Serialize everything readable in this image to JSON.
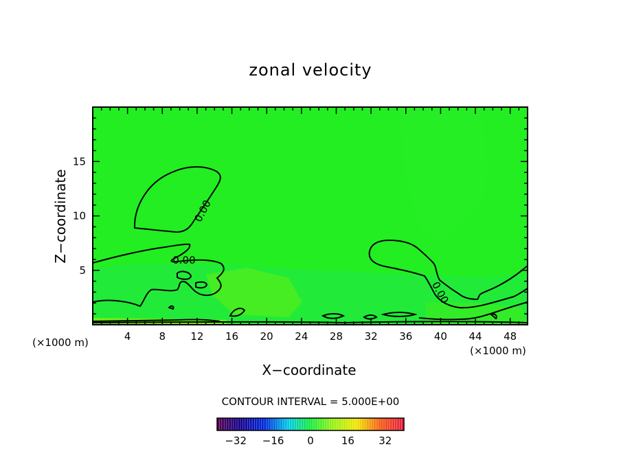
{
  "chart_data": {
    "type": "heatmap",
    "title": "zonal velocity",
    "xlabel": "X−coordinate",
    "ylabel": "Z−coordinate",
    "x_unit_left": "(×1000 m)",
    "x_unit_right": "(×1000 m)",
    "xlim": [
      0,
      50
    ],
    "ylim": [
      0,
      20
    ],
    "x_ticks": [
      4,
      8,
      12,
      16,
      20,
      24,
      28,
      32,
      36,
      40,
      44,
      48
    ],
    "y_ticks": [
      5,
      10,
      15
    ],
    "contour_interval_text": "CONTOUR INTERVAL = 5.000E+00",
    "contour_labels": [
      {
        "text": "0.00",
        "x": 13.0,
        "y": 10.3,
        "angle": -62
      },
      {
        "text": "0.00",
        "x": 10.5,
        "y": 5.6,
        "angle": 0
      },
      {
        "text": "0.00",
        "x": 39.6,
        "y": 2.8,
        "angle": 62
      }
    ],
    "field_value_range": [
      -2,
      3
    ],
    "colorbar": {
      "range": [
        -40,
        40
      ],
      "ticks": [
        -32,
        -16,
        0,
        16,
        32
      ],
      "tick_labels": [
        "−32",
        "−16",
        "0",
        "16",
        "32"
      ]
    },
    "colors": {
      "background_field": "#22ee22",
      "positive_field": "#66ee11",
      "negative_field": "#22e855",
      "contour_line": "#000000"
    }
  }
}
